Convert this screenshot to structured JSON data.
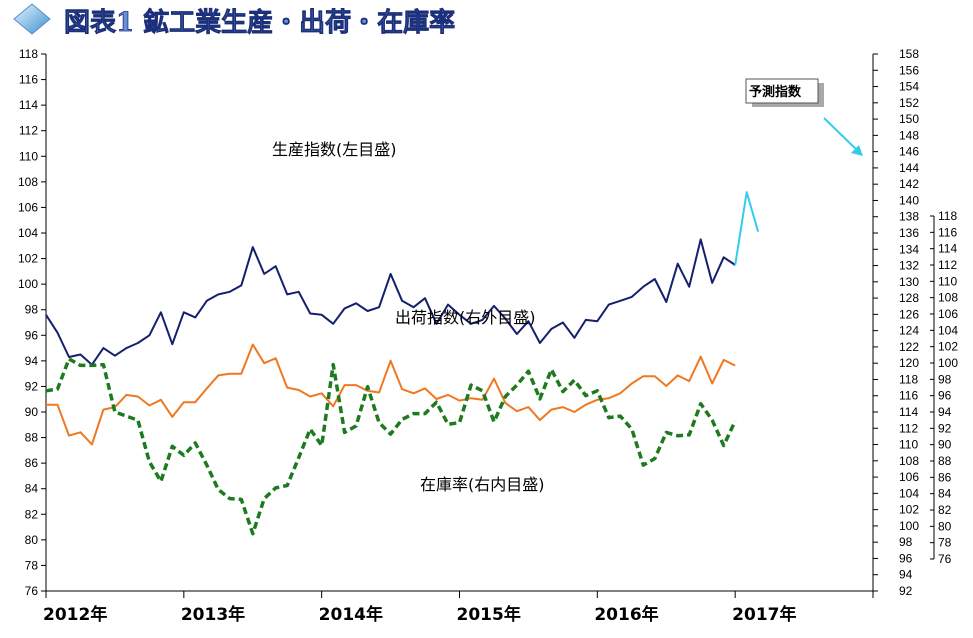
{
  "chart_data": {
    "type": "line",
    "title": "図表1 鉱工業生産・出荷・在庫率",
    "x_labels": [
      "2012年",
      "2013年",
      "2014年",
      "2015年",
      "2016年",
      "2017年"
    ],
    "axes": {
      "left": {
        "min": 76,
        "max": 118,
        "step": 2,
        "labels_from": 76,
        "labels_to": 118
      },
      "right_outer": {
        "min": 92,
        "max": 158,
        "step": 2
      },
      "right_inner": {
        "min": 76,
        "max": 118,
        "step": 2
      }
    },
    "annotations": {
      "production_label": "生産指数(左目盛)",
      "shipment_label": "出荷指数(右外目盛)",
      "inventory_label": "在庫率(右内目盛)",
      "forecast_label": "予測指数"
    },
    "series": [
      {
        "key": "production",
        "axis": "left",
        "color": "#14206e",
        "values": [
          97.6,
          96.2,
          94.3,
          94.5,
          93.7,
          95.0,
          94.4,
          95.0,
          95.4,
          96.0,
          97.8,
          95.3,
          97.8,
          97.4,
          98.7,
          99.2,
          99.4,
          99.9,
          102.9,
          100.8,
          101.4,
          99.2,
          99.4,
          97.7,
          97.6,
          96.9,
          98.1,
          98.5,
          97.9,
          98.2,
          100.8,
          98.7,
          98.2,
          98.9,
          96.9,
          98.4,
          97.6,
          96.9,
          97.2,
          98.3,
          97.3,
          96.1,
          97.1,
          95.4,
          96.5,
          97.0,
          95.8,
          97.2,
          97.1,
          98.4,
          98.7,
          99.0,
          99.8,
          100.4,
          98.6,
          101.6,
          99.8,
          103.5,
          100.1,
          102.1,
          101.5
        ]
      },
      {
        "key": "production_forecast",
        "axis": "left",
        "color": "#33ccee",
        "start_index": 60,
        "values": [
          101.5,
          107.2,
          104.1
        ]
      },
      {
        "key": "shipments",
        "axis": "right_outer",
        "color": "#f07820",
        "values": [
          114.9,
          114.9,
          111.1,
          111.5,
          110.0,
          114.3,
          114.6,
          116.1,
          115.9,
          114.8,
          115.5,
          113.4,
          115.2,
          115.2,
          116.9,
          118.5,
          118.7,
          118.7,
          122.3,
          120.0,
          120.6,
          117.0,
          116.7,
          115.9,
          116.3,
          114.7,
          117.3,
          117.3,
          116.6,
          116.4,
          120.3,
          116.8,
          116.3,
          116.9,
          115.6,
          116.1,
          115.4,
          115.7,
          115.5,
          118.1,
          115.1,
          114.1,
          114.6,
          113.0,
          114.3,
          114.6,
          114.0,
          114.9,
          115.5,
          115.7,
          116.3,
          117.5,
          118.4,
          118.4,
          117.2,
          118.5,
          117.8,
          120.8,
          117.5,
          120.4,
          119.7
        ]
      },
      {
        "key": "inventory",
        "axis": "right_inner",
        "color": "#1e7a1e",
        "values": [
          96.6,
          96.8,
          100.5,
          99.7,
          99.7,
          99.8,
          94.0,
          93.5,
          93.0,
          87.9,
          85.5,
          89.8,
          88.7,
          90.2,
          87.5,
          84.5,
          83.4,
          83.3,
          79.1,
          83.4,
          84.7,
          85.0,
          88.4,
          91.9,
          89.9,
          99.8,
          91.5,
          92.3,
          97.1,
          92.7,
          91.3,
          93.1,
          93.8,
          93.8,
          95.2,
          92.5,
          92.7,
          97.3,
          96.6,
          92.8,
          95.9,
          97.3,
          99.0,
          95.6,
          99.2,
          96.5,
          97.9,
          96.0,
          96.6,
          93.3,
          93.5,
          91.9,
          87.5,
          88.3,
          91.5,
          91.1,
          91.2,
          95.0,
          93.0,
          89.9,
          92.9
        ]
      }
    ],
    "grid": false,
    "legend": "none"
  }
}
